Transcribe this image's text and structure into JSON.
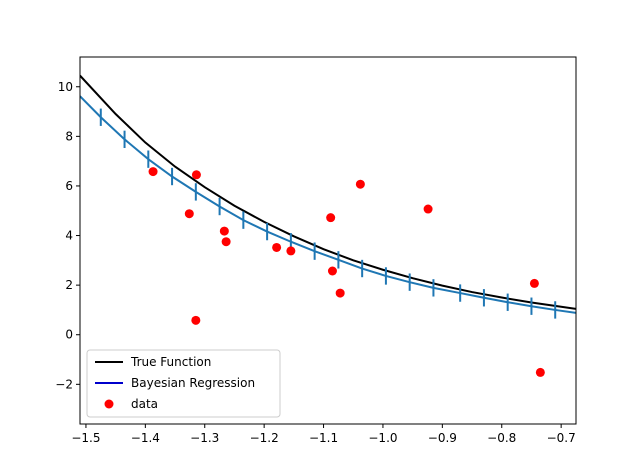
{
  "chart_data": {
    "type": "line",
    "title": "",
    "xlabel": "",
    "ylabel": "",
    "xlim": [
      -1.51,
      -0.675
    ],
    "ylim": [
      -3.6,
      11.2
    ],
    "xticks": [
      -1.5,
      -1.4,
      -1.3,
      -1.2,
      -1.1,
      -1.0,
      -0.9,
      -0.8,
      -0.7
    ],
    "xtick_labels": [
      "−1.5",
      "−1.4",
      "−1.3",
      "−1.2",
      "−1.1",
      "−1.0",
      "−0.9",
      "−0.8",
      "−0.7"
    ],
    "yticks": [
      -2,
      0,
      2,
      4,
      6,
      8,
      10
    ],
    "ytick_labels": [
      "−2",
      "0",
      "2",
      "4",
      "6",
      "8",
      "10"
    ],
    "grid": false,
    "legend_position": "lower-left",
    "series": [
      {
        "name": "True Function",
        "color": "#000000",
        "x": [
          -1.51,
          -1.45,
          -1.4,
          -1.35,
          -1.3,
          -1.25,
          -1.2,
          -1.15,
          -1.1,
          -1.05,
          -1.0,
          -0.95,
          -0.9,
          -0.85,
          -0.8,
          -0.75,
          -0.7,
          -0.675
        ],
        "y": [
          10.45,
          8.9,
          7.75,
          6.78,
          5.95,
          5.2,
          4.55,
          3.97,
          3.45,
          3.0,
          2.62,
          2.28,
          1.98,
          1.72,
          1.5,
          1.3,
          1.13,
          1.04
        ]
      },
      {
        "name": "Bayesian Regression",
        "legend_color": "#0000cc",
        "color": "#1f77b4",
        "x": [
          -1.51,
          -1.475,
          -1.435,
          -1.395,
          -1.355,
          -1.315,
          -1.275,
          -1.235,
          -1.195,
          -1.155,
          -1.115,
          -1.075,
          -1.035,
          -0.995,
          -0.955,
          -0.915,
          -0.87,
          -0.83,
          -0.79,
          -0.75,
          -0.71,
          -0.675
        ],
        "y": [
          9.62,
          8.77,
          7.88,
          7.08,
          6.38,
          5.76,
          5.17,
          4.62,
          4.16,
          3.75,
          3.37,
          3.02,
          2.67,
          2.37,
          2.12,
          1.89,
          1.68,
          1.49,
          1.31,
          1.15,
          1.0,
          0.88
        ],
        "error_x": [
          -1.475,
          -1.435,
          -1.395,
          -1.355,
          -1.315,
          -1.275,
          -1.235,
          -1.195,
          -1.155,
          -1.115,
          -1.075,
          -1.035,
          -0.995,
          -0.955,
          -0.915,
          -0.87,
          -0.83,
          -0.79,
          -0.75,
          -0.71
        ],
        "error_halfwidth": 0.35
      },
      {
        "name": "data",
        "color": "#ff0000",
        "marker": "circle",
        "x": [
          -1.387,
          -1.314,
          -1.326,
          -1.267,
          -1.264,
          -1.315,
          -1.179,
          -1.155,
          -1.088,
          -1.085,
          -1.072,
          -1.038,
          -0.924,
          -0.745,
          -0.735
        ],
        "y": [
          6.58,
          6.45,
          4.88,
          4.18,
          3.75,
          0.58,
          3.52,
          3.38,
          4.72,
          2.57,
          1.68,
          6.07,
          5.07,
          2.07,
          -1.52
        ]
      }
    ]
  }
}
